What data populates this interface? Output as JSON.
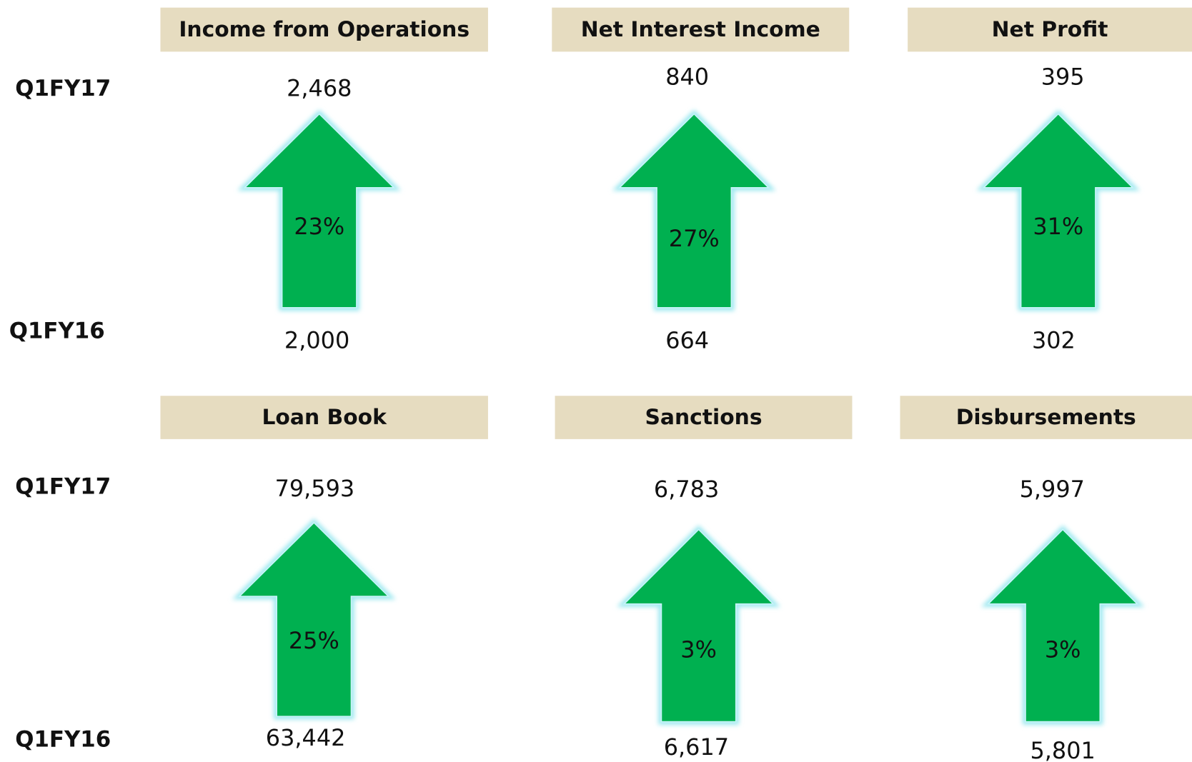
{
  "rows": [
    {
      "top_label": "Q1FY17",
      "bottom_label": "Q1FY16",
      "panels": [
        {
          "title": "Income from Operations",
          "current": "2,468",
          "previous": "2,000",
          "growth": "23%"
        },
        {
          "title": "Net Interest Income",
          "current": "840",
          "previous": "664",
          "growth": "27%"
        },
        {
          "title": "Net Profit",
          "current": "395",
          "previous": "302",
          "growth": "31%"
        }
      ]
    },
    {
      "top_label": "Q1FY17",
      "bottom_label": "Q1FY16",
      "panels": [
        {
          "title": "Loan Book",
          "current": "79,593",
          "previous": "63,442",
          "growth": "25%"
        },
        {
          "title": "Sanctions",
          "current": "6,783",
          "previous": "6,617",
          "growth": "3%"
        },
        {
          "title": "Disbursements",
          "current": "5,997",
          "previous": "5,801",
          "growth": "3%"
        }
      ]
    }
  ]
}
